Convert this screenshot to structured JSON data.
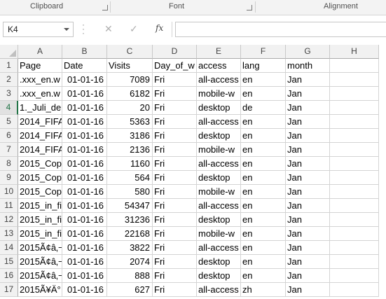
{
  "ribbon": {
    "groups": [
      "Clipboard",
      "Font",
      "Alignment"
    ]
  },
  "formula_bar": {
    "name_box": "K4",
    "fx_label": "fx",
    "formula": ""
  },
  "sheet": {
    "selected_cell": "K4",
    "columns": [
      "A",
      "B",
      "C",
      "D",
      "E",
      "F",
      "G",
      "H"
    ],
    "row_numbers": [
      "1",
      "2",
      "3",
      "4",
      "5",
      "6",
      "7",
      "8",
      "9",
      "10",
      "11",
      "12",
      "13",
      "14",
      "15",
      "16",
      "17"
    ],
    "rows": [
      [
        ".xxx_en.w",
        "01-01-16",
        "7089",
        "Fri",
        "all-access",
        "en",
        "Jan",
        ""
      ],
      [
        ".xxx_en.w",
        "01-01-16",
        "6182",
        "Fri",
        "mobile-w",
        "en",
        "Jan",
        ""
      ],
      [
        "1._Juli_de",
        "01-01-16",
        "20",
        "Fri",
        "desktop",
        "de",
        "Jan",
        ""
      ],
      [
        "2014_FIFA",
        "01-01-16",
        "5363",
        "Fri",
        "all-access",
        "en",
        "Jan",
        ""
      ],
      [
        "2014_FIFA",
        "01-01-16",
        "3186",
        "Fri",
        "desktop",
        "en",
        "Jan",
        ""
      ],
      [
        "2014_FIFA",
        "01-01-16",
        "2136",
        "Fri",
        "mobile-w",
        "en",
        "Jan",
        ""
      ],
      [
        "2015_Copa",
        "01-01-16",
        "1160",
        "Fri",
        "all-access",
        "en",
        "Jan",
        ""
      ],
      [
        "2015_Copa",
        "01-01-16",
        "564",
        "Fri",
        "desktop",
        "en",
        "Jan",
        ""
      ],
      [
        "2015_Copa",
        "01-01-16",
        "580",
        "Fri",
        "mobile-w",
        "en",
        "Jan",
        ""
      ],
      [
        "2015_in_fi",
        "01-01-16",
        "54347",
        "Fri",
        "all-access",
        "en",
        "Jan",
        ""
      ],
      [
        "2015_in_fi",
        "01-01-16",
        "31236",
        "Fri",
        "desktop",
        "en",
        "Jan",
        ""
      ],
      [
        "2015_in_fi",
        "01-01-16",
        "22168",
        "Fri",
        "mobile-w",
        "en",
        "Jan",
        ""
      ],
      [
        "2015Ã¢â‚¬",
        "01-01-16",
        "3822",
        "Fri",
        "all-access",
        "en",
        "Jan",
        ""
      ],
      [
        "2015Ã¢â‚¬",
        "01-01-16",
        "2074",
        "Fri",
        "desktop",
        "en",
        "Jan",
        ""
      ],
      [
        "2015Ã¢â‚¬",
        "01-01-16",
        "888",
        "Fri",
        "desktop",
        "en",
        "Jan",
        ""
      ],
      [
        "2015Ã¥Ä°",
        "01-01-16",
        "627",
        "Fri",
        "all-access",
        "zh",
        "Jan",
        ""
      ]
    ],
    "header_row": [
      "Page",
      "Date",
      "Visits",
      "Day_of_w",
      "access",
      "lang",
      "month",
      ""
    ]
  }
}
